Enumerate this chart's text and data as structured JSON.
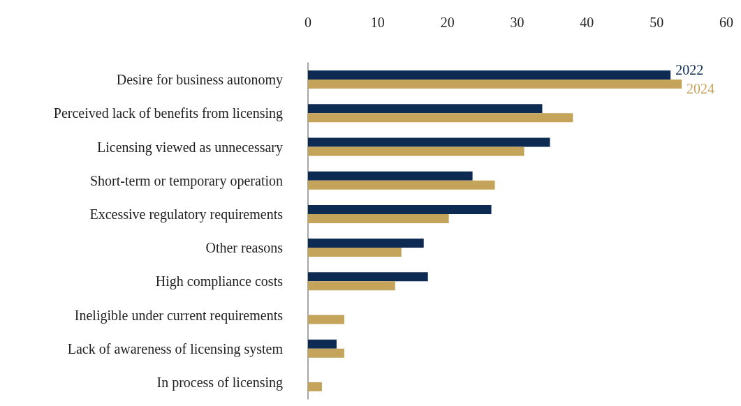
{
  "chart_data": {
    "type": "bar",
    "orientation": "horizontal",
    "categories": [
      "Desire for business autonomy",
      "Perceived lack of benefits from licensing",
      "Licensing viewed as unnecessary",
      "Short-term or temporary operation",
      "Excessive regulatory requirements",
      "Other reasons",
      "High compliance costs",
      "Ineligible under current requirements",
      "Lack of awareness of licensing system",
      "In process of licensing"
    ],
    "series": [
      {
        "name": "2022",
        "color": "#0d2b52",
        "values": [
          52,
          33.6,
          34.7,
          23.6,
          26.3,
          16.6,
          17.2,
          null,
          4.1,
          null
        ]
      },
      {
        "name": "2024",
        "color": "#c4a35a",
        "values": [
          53.6,
          38,
          31,
          26.8,
          20.2,
          13.4,
          12.5,
          5.2,
          5.2,
          2
        ]
      }
    ],
    "xlim": [
      0,
      60
    ],
    "xticks": [
      0,
      10,
      20,
      30,
      40,
      50,
      60
    ],
    "grid": false,
    "legend": false
  }
}
